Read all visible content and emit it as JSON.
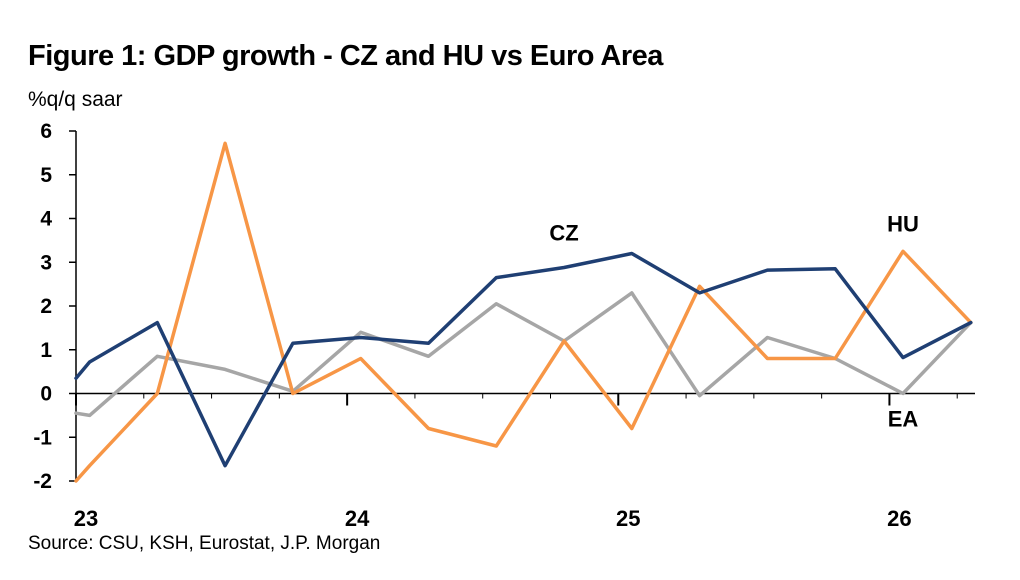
{
  "title": "Figure 1: GDP growth - CZ and HU vs Euro Area",
  "units": "%q/q saar",
  "source": "Source: CSU, KSH, Eurostat, J.P. Morgan",
  "chart_data": {
    "type": "line",
    "ylim": [
      -2,
      6
    ],
    "yticks": [
      -2,
      -1,
      0,
      1,
      2,
      3,
      4,
      5,
      6
    ],
    "xlim": [
      2023.0,
      2026.5
    ],
    "xticks": [
      {
        "value": 2023,
        "label": "23"
      },
      {
        "value": 2024,
        "label": "24"
      },
      {
        "value": 2025,
        "label": "25"
      },
      {
        "value": 2026,
        "label": "26"
      }
    ],
    "grid": false,
    "series": [
      {
        "name": "EA",
        "color": "#a6a6a6",
        "points": [
          [
            2023.0,
            -0.45
          ],
          [
            2023.05,
            -0.5
          ],
          [
            2023.3,
            0.85
          ],
          [
            2023.55,
            0.55
          ],
          [
            2023.8,
            0.05
          ],
          [
            2024.05,
            1.4
          ],
          [
            2024.3,
            0.85
          ],
          [
            2024.55,
            2.05
          ],
          [
            2024.8,
            1.2
          ],
          [
            2025.05,
            2.3
          ],
          [
            2025.3,
            -0.05
          ],
          [
            2025.55,
            1.28
          ],
          [
            2025.8,
            0.8
          ],
          [
            2026.05,
            0.0
          ],
          [
            2026.3,
            1.62
          ]
        ]
      },
      {
        "name": "HU",
        "color": "#f79646",
        "points": [
          [
            2023.0,
            -2.0
          ],
          [
            2023.05,
            -1.65
          ],
          [
            2023.3,
            0.0
          ],
          [
            2023.55,
            5.72
          ],
          [
            2023.8,
            0.0
          ],
          [
            2024.05,
            0.8
          ],
          [
            2024.3,
            -0.8
          ],
          [
            2024.55,
            -1.2
          ],
          [
            2024.8,
            1.2
          ],
          [
            2025.05,
            -0.8
          ],
          [
            2025.3,
            2.45
          ],
          [
            2025.55,
            0.8
          ],
          [
            2025.8,
            0.8
          ],
          [
            2026.05,
            3.25
          ],
          [
            2026.3,
            1.62
          ]
        ]
      },
      {
        "name": "CZ",
        "color": "#1f3f73",
        "points": [
          [
            2023.0,
            0.35
          ],
          [
            2023.05,
            0.72
          ],
          [
            2023.3,
            1.62
          ],
          [
            2023.55,
            -1.65
          ],
          [
            2023.8,
            1.15
          ],
          [
            2024.05,
            1.28
          ],
          [
            2024.3,
            1.15
          ],
          [
            2024.55,
            2.65
          ],
          [
            2024.8,
            2.88
          ],
          [
            2025.05,
            3.2
          ],
          [
            2025.3,
            2.3
          ],
          [
            2025.55,
            2.82
          ],
          [
            2025.8,
            2.85
          ],
          [
            2026.05,
            0.82
          ],
          [
            2026.3,
            1.62
          ]
        ]
      }
    ],
    "annotations": [
      {
        "text": "CZ",
        "x": 2024.8,
        "y": 3.5
      },
      {
        "text": "HU",
        "x": 2026.05,
        "y": 3.7
      },
      {
        "text": "EA",
        "x": 2026.05,
        "y": -0.75
      }
    ]
  }
}
